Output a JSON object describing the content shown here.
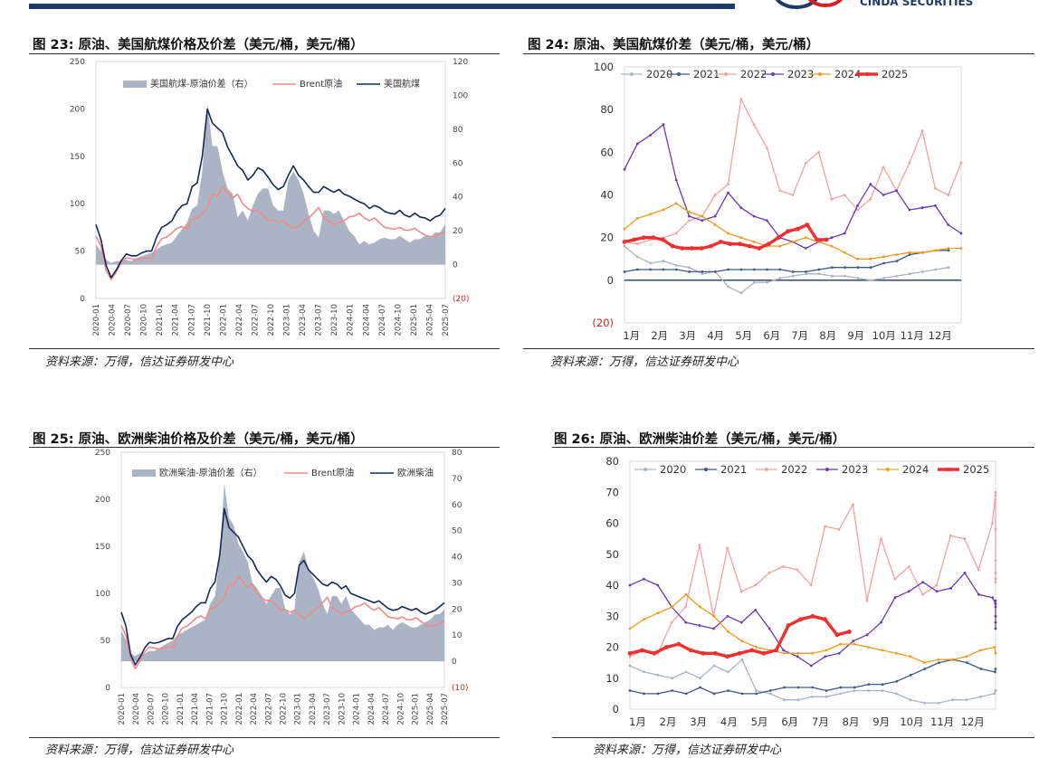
{
  "header": {
    "logo_text": "CINDA SECURITIES"
  },
  "figures": [
    {
      "id": "fig23",
      "title": "图 23:  原油、美国航煤价格及价差（美元/桶，美元/桶）",
      "source": "资料来源：万得，信达证券研发中心"
    },
    {
      "id": "fig24",
      "title": "图 24:  原油、美国航煤价差（美元/桶，美元/桶）",
      "source": "资料来源：万得，信达证券研发中心"
    },
    {
      "id": "fig25",
      "title": "图 25:  原油、欧洲柴油价格及价差（美元/桶，美元/桶）",
      "source": "资料来源：万得，信达证券研发中心"
    },
    {
      "id": "fig26",
      "title": "图 26:  原油、欧洲柴油价差（美元/桶，美元/桶）",
      "source": "资料来源：万得，信达证券研发中心"
    }
  ],
  "colors": {
    "spread": "#aab4c4",
    "brent": "#f08a8a",
    "product": "#14285a",
    "neg_label": "#d62020"
  },
  "chart_data": [
    {
      "id": "fig23",
      "type": "area",
      "title": "原油、美国航煤价格及价差",
      "x_ticks": [
        "2020-01",
        "2020-04",
        "2020-07",
        "2020-10",
        "2021-01",
        "2021-04",
        "2021-07",
        "2021-10",
        "2022-01",
        "2022-04",
        "2022-07",
        "2022-10",
        "2023-01",
        "2023-04",
        "2023-07",
        "2023-10",
        "2024-01",
        "2024-04",
        "2024-07",
        "2024-10",
        "2025-01",
        "2025-04",
        "2025-07"
      ],
      "y_left": {
        "ticks": [
          "0",
          "50",
          "100",
          "150",
          "200",
          "250"
        ],
        "range": [
          0,
          250
        ]
      },
      "y_right": {
        "ticks": [
          "(20)",
          "0",
          "20",
          "40",
          "60",
          "80",
          "100",
          "120"
        ],
        "range": [
          -20,
          120
        ]
      },
      "legend": [
        "美国航煤-原油价差（右）",
        "Brent原油",
        "美国航煤"
      ],
      "series": [
        {
          "name": "Brent原油",
          "axis": "left",
          "values": [
            66,
            55,
            30,
            20,
            28,
            38,
            43,
            42,
            41,
            42,
            43,
            42,
            55,
            63,
            65,
            69,
            74,
            76,
            73,
            84,
            85,
            90,
            95,
            110,
            108,
            118,
            112,
            106,
            110,
            100,
            95,
            92,
            93,
            88,
            82,
            83,
            80,
            82,
            77,
            74,
            76,
            81,
            85,
            90,
            96,
            85,
            82,
            78,
            80,
            82,
            86,
            87,
            90,
            85,
            82,
            85,
            80,
            75,
            74,
            73,
            75,
            72,
            72,
            74,
            70,
            67,
            65,
            66,
            68,
            70
          ]
        },
        {
          "name": "美国航煤",
          "axis": "left",
          "values": [
            78,
            62,
            35,
            22,
            30,
            40,
            47,
            45,
            45,
            48,
            50,
            50,
            65,
            75,
            78,
            82,
            92,
            98,
            100,
            118,
            122,
            150,
            200,
            185,
            180,
            175,
            160,
            150,
            140,
            135,
            125,
            130,
            138,
            135,
            128,
            120,
            115,
            118,
            130,
            140,
            130,
            125,
            118,
            112,
            112,
            118,
            115,
            112,
            115,
            110,
            108,
            105,
            102,
            100,
            95,
            98,
            96,
            92,
            90,
            89,
            93,
            88,
            86,
            90,
            86,
            85,
            82,
            86,
            88,
            95
          ]
        },
        {
          "name": "美国航煤-原油价差（右）",
          "axis": "right",
          "values": [
            12,
            8,
            3,
            1,
            2,
            2,
            3,
            2,
            4,
            5,
            6,
            7,
            9,
            11,
            12,
            13,
            17,
            21,
            25,
            33,
            35,
            55,
            95,
            70,
            70,
            55,
            45,
            42,
            28,
            32,
            26,
            35,
            42,
            45,
            45,
            35,
            32,
            32,
            50,
            55,
            50,
            42,
            30,
            20,
            16,
            32,
            32,
            30,
            32,
            26,
            20,
            17,
            12,
            14,
            12,
            13,
            15,
            16,
            15,
            15,
            17,
            15,
            13,
            15,
            15,
            17,
            16,
            19,
            19,
            24
          ]
        }
      ]
    },
    {
      "id": "fig24",
      "type": "line",
      "title": "原油、美国航煤价差",
      "x_ticks": [
        "1月",
        "2月",
        "3月",
        "4月",
        "5月",
        "6月",
        "7月",
        "8月",
        "9月",
        "10月",
        "11月",
        "12月"
      ],
      "y_ticks": [
        "(20)",
        "0",
        "20",
        "40",
        "60",
        "80",
        "100"
      ],
      "ylim": [
        -20,
        100
      ],
      "legend": [
        "2020",
        "2021",
        "2022",
        "2023",
        "2024",
        "2025"
      ],
      "series": [
        {
          "name": "2020",
          "color": "#aab4c4",
          "values": [
            16,
            11,
            8,
            9,
            7,
            6,
            3,
            4,
            -3,
            -6,
            -1,
            -1,
            1,
            2,
            3,
            3,
            2,
            2,
            1,
            0,
            1,
            2,
            3,
            4,
            5,
            6
          ]
        },
        {
          "name": "2021",
          "color": "#3c5a8c",
          "values": [
            4,
            5,
            5,
            5,
            5,
            4,
            4,
            4,
            5,
            5,
            5,
            5,
            5,
            4,
            4,
            5,
            6,
            6,
            6,
            6,
            8,
            9,
            12,
            13,
            14,
            14
          ]
        },
        {
          "name": "2022",
          "color": "#f4a0a0",
          "values": [
            18,
            17,
            19,
            20,
            22,
            28,
            30,
            40,
            45,
            85,
            73,
            62,
            42,
            40,
            55,
            60,
            38,
            40,
            33,
            38,
            53,
            42,
            55,
            70,
            43,
            40,
            55
          ]
        },
        {
          "name": "2023",
          "color": "#6a3ab0",
          "values": [
            52,
            64,
            68,
            73,
            47,
            30,
            28,
            30,
            41,
            34,
            30,
            28,
            20,
            18,
            15,
            18,
            20,
            22,
            35,
            45,
            40,
            42,
            33,
            34,
            35,
            26,
            22
          ]
        },
        {
          "name": "2024",
          "color": "#f09a20",
          "values": [
            24,
            29,
            31,
            33,
            36,
            32,
            30,
            26,
            22,
            20,
            18,
            16,
            16,
            18,
            20,
            18,
            16,
            13,
            10,
            10,
            11,
            12,
            13,
            13,
            14,
            15,
            15
          ]
        },
        {
          "name": "2025",
          "color": "#f03030",
          "values": [
            18,
            19,
            20,
            20,
            19,
            16,
            15,
            15,
            15,
            16,
            18,
            17,
            17,
            16,
            15,
            17,
            20,
            23,
            24,
            26,
            19,
            19
          ]
        }
      ]
    },
    {
      "id": "fig25",
      "type": "area",
      "title": "原油、欧洲柴油价格及价差",
      "x_ticks": [
        "2020-01",
        "2020-04",
        "2020-07",
        "2020-10",
        "2021-01",
        "2021-04",
        "2021-07",
        "2021-10",
        "2022-01",
        "2022-04",
        "2022-07",
        "2022-10",
        "2023-01",
        "2023-04",
        "2023-07",
        "2023-10",
        "2024-01",
        "2024-04",
        "2024-07",
        "2024-10",
        "2025-01",
        "2025-04",
        "2025-07"
      ],
      "y_left": {
        "ticks": [
          "0",
          "50",
          "100",
          "150",
          "200",
          "250"
        ],
        "range": [
          0,
          250
        ]
      },
      "y_right": {
        "ticks": [
          "(10)",
          "0",
          "10",
          "20",
          "30",
          "40",
          "50",
          "60",
          "70",
          "80"
        ],
        "range": [
          -10,
          80
        ]
      },
      "legend": [
        "欧洲柴油-原油价差（右）",
        "Brent原油",
        "欧洲柴油"
      ],
      "series": [
        {
          "name": "Brent原油",
          "axis": "left",
          "values": [
            66,
            55,
            30,
            20,
            28,
            38,
            43,
            42,
            41,
            42,
            43,
            42,
            55,
            63,
            65,
            69,
            74,
            76,
            73,
            84,
            85,
            90,
            95,
            110,
            108,
            118,
            112,
            106,
            110,
            100,
            95,
            92,
            93,
            88,
            82,
            83,
            80,
            82,
            77,
            74,
            76,
            81,
            85,
            90,
            96,
            85,
            82,
            78,
            80,
            82,
            86,
            87,
            90,
            85,
            82,
            85,
            80,
            75,
            74,
            73,
            75,
            72,
            72,
            74,
            70,
            67,
            65,
            66,
            68,
            70
          ]
        },
        {
          "name": "欧洲柴油",
          "axis": "left",
          "values": [
            80,
            65,
            35,
            24,
            32,
            42,
            48,
            47,
            48,
            50,
            52,
            52,
            65,
            72,
            76,
            80,
            86,
            90,
            90,
            105,
            112,
            140,
            190,
            170,
            165,
            160,
            150,
            140,
            135,
            125,
            118,
            112,
            118,
            115,
            108,
            98,
            95,
            100,
            130,
            135,
            125,
            120,
            115,
            110,
            108,
            112,
            110,
            105,
            108,
            100,
            98,
            96,
            94,
            92,
            90,
            92,
            88,
            84,
            82,
            83,
            86,
            84,
            82,
            84,
            80,
            78,
            80,
            82,
            86,
            90
          ]
        },
        {
          "name": "欧洲柴油-原油价差（右）",
          "axis": "right",
          "values": [
            12,
            8,
            3,
            2,
            3,
            3,
            4,
            4,
            5,
            6,
            7,
            8,
            10,
            11,
            12,
            13,
            14,
            15,
            16,
            22,
            25,
            40,
            68,
            55,
            52,
            45,
            42,
            38,
            30,
            28,
            25,
            22,
            25,
            28,
            28,
            20,
            18,
            20,
            38,
            42,
            35,
            32,
            28,
            22,
            18,
            25,
            25,
            22,
            25,
            20,
            18,
            16,
            14,
            14,
            12,
            13,
            13,
            14,
            12,
            14,
            15,
            14,
            13,
            13,
            14,
            15,
            16,
            18,
            18,
            20
          ]
        }
      ]
    },
    {
      "id": "fig26",
      "type": "line",
      "title": "原油、欧洲柴油价差",
      "x_ticks": [
        "1月",
        "2月",
        "3月",
        "4月",
        "5月",
        "6月",
        "7月",
        "8月",
        "9月",
        "10月",
        "11月",
        "12月"
      ],
      "y_ticks": [
        "0",
        "10",
        "20",
        "30",
        "40",
        "50",
        "60",
        "70",
        "80"
      ],
      "ylim": [
        0,
        80
      ],
      "legend": [
        "2020",
        "2021",
        "2022",
        "2023",
        "2024",
        "2025"
      ],
      "series": [
        {
          "name": "2020",
          "color": "#aab4c4",
          "values": [
            14,
            12,
            11,
            10,
            12,
            10,
            14,
            12,
            16,
            6,
            5,
            3,
            3,
            4,
            4,
            5,
            6,
            6,
            6,
            5,
            3,
            2,
            2,
            3,
            3,
            4,
            5,
            6,
            6
          ]
        },
        {
          "name": "2021",
          "color": "#3c5a8c",
          "values": [
            6,
            5,
            5,
            6,
            5,
            7,
            5,
            6,
            5,
            5,
            6,
            7,
            7,
            7,
            6,
            7,
            7,
            8,
            8,
            9,
            11,
            13,
            15,
            16,
            15,
            13,
            12,
            13
          ]
        },
        {
          "name": "2022",
          "color": "#f4a0a0",
          "values": [
            17,
            19,
            18,
            28,
            33,
            53,
            30,
            52,
            38,
            40,
            44,
            46,
            45,
            40,
            59,
            58,
            66,
            35,
            55,
            42,
            46,
            37,
            40,
            56,
            55,
            45,
            60,
            70,
            69,
            58,
            48,
            42,
            44,
            44,
            41
          ]
        },
        {
          "name": "2023",
          "color": "#6a3ab0",
          "values": [
            40,
            42,
            40,
            33,
            28,
            27,
            26,
            30,
            28,
            32,
            26,
            19,
            17,
            14,
            17,
            18,
            22,
            24,
            28,
            36,
            38,
            41,
            38,
            39,
            44,
            37,
            36,
            34,
            35,
            34,
            33,
            30,
            28,
            26
          ]
        },
        {
          "name": "2024",
          "color": "#f09a20",
          "values": [
            26,
            29,
            31,
            33,
            37,
            33,
            30,
            25,
            22,
            20,
            19,
            18,
            18,
            18,
            19,
            21,
            21,
            20,
            19,
            18,
            17,
            15,
            16,
            16,
            17,
            19,
            20,
            18,
            18
          ]
        },
        {
          "name": "2025",
          "color": "#f03030",
          "values": [
            18,
            19,
            18,
            20,
            21,
            19,
            18,
            18,
            17,
            18,
            19,
            18,
            19,
            27,
            29,
            30,
            29,
            24,
            25
          ]
        }
      ]
    }
  ]
}
